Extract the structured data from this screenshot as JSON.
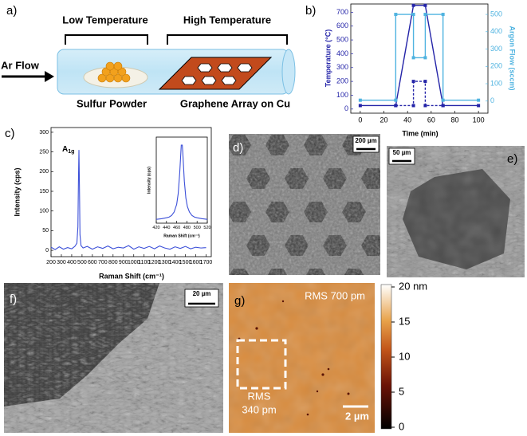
{
  "diagram": {
    "label": "a)",
    "low": "Low Temperature",
    "high": "High Temperature",
    "flow": "Ar Flow",
    "source": "Sulfur Powder",
    "substrate": "Graphene Array on Cu"
  },
  "chart_data": [
    {
      "type": "line",
      "label": "b)",
      "xlabel": "Time (min)",
      "ylabel": "Temperature (°C)",
      "y2label": "Argon Flow (sccm)",
      "xlim": [
        -8,
        108
      ],
      "ylim": [
        -30,
        760
      ],
      "y2lim": [
        -70,
        560
      ],
      "xticks": [
        0,
        20,
        40,
        60,
        80,
        100
      ],
      "yticks": [
        0,
        100,
        200,
        300,
        400,
        500,
        600,
        700
      ],
      "y2ticks": [
        0,
        100,
        200,
        300,
        400,
        500
      ],
      "markers": true,
      "axis_color": "#2424a8",
      "axis2_color": "#4fb3e0",
      "series": [
        {
          "color": "#2424a8",
          "x": [
            0,
            30,
            45,
            55,
            70,
            100
          ],
          "values": [
            25,
            25,
            750,
            750,
            25,
            25
          ]
        },
        {
          "color": "#2424a8",
          "dashed": true,
          "x": [
            30,
            45,
            45,
            55,
            55,
            70
          ],
          "values": [
            25,
            25,
            200,
            200,
            25,
            25
          ]
        },
        {
          "color": "#4fb3e0",
          "axis": "y2",
          "x": [
            0,
            30,
            30,
            45,
            45,
            55,
            55,
            70,
            70,
            100
          ],
          "values": [
            5,
            5,
            500,
            500,
            250,
            250,
            500,
            500,
            5,
            5
          ]
        }
      ]
    },
    {
      "type": "line",
      "label": "c)",
      "xlabel": "Raman Shift (cm⁻¹)",
      "ylabel": "Intensity (cps)",
      "annotation": {
        "text": "A",
        "sub": "1g"
      },
      "xlim": [
        200,
        1750
      ],
      "ylim": [
        -16,
        312
      ],
      "xticks": [
        200,
        300,
        400,
        500,
        600,
        700,
        800,
        900,
        1000,
        1100,
        1200,
        1300,
        1400,
        1500,
        1600,
        1700
      ],
      "yticks": [
        0,
        50,
        100,
        150,
        200,
        250,
        300
      ],
      "series": [
        {
          "color": "#3b4fd8",
          "x": [
            200,
            240,
            280,
            320,
            360,
            400,
            430,
            450,
            460,
            465,
            470,
            475,
            480,
            490,
            510,
            550,
            600,
            650,
            700,
            750,
            800,
            850,
            900,
            950,
            1000,
            1050,
            1100,
            1150,
            1200,
            1250,
            1300,
            1350,
            1400,
            1450,
            1500,
            1550,
            1600,
            1650,
            1700
          ],
          "values": [
            8,
            2,
            9,
            3,
            7,
            4,
            10,
            18,
            60,
            170,
            255,
            160,
            40,
            12,
            6,
            10,
            3,
            9,
            5,
            11,
            4,
            8,
            6,
            12,
            3,
            9,
            5,
            10,
            4,
            11,
            6,
            3,
            9,
            5,
            10,
            4,
            8,
            6,
            7
          ]
        }
      ]
    },
    {
      "type": "line",
      "xlabel": "Raman Shift (cm⁻¹)",
      "ylabel": "Intensity (cps)",
      "xlim": [
        420,
        520
      ],
      "ylim": [
        0,
        270
      ],
      "xticks": [
        420,
        440,
        460,
        480,
        500,
        520
      ],
      "series": [
        {
          "color": "#3b4fd8",
          "x": [
            420,
            430,
            440,
            445,
            450,
            455,
            460,
            463,
            466,
            469,
            471,
            472,
            475,
            478,
            481,
            485,
            490,
            495,
            500,
            510,
            520
          ],
          "values": [
            12,
            14,
            17,
            19,
            24,
            35,
            59,
            93,
            159,
            245,
            245,
            221,
            132,
            79,
            52,
            35,
            24,
            19,
            17,
            14,
            12
          ]
        }
      ]
    }
  ],
  "images": [
    {
      "label": "d)",
      "scale_bar": "200 µm"
    },
    {
      "label": "e)",
      "scale_bar": "50 µm"
    },
    {
      "label": "f)",
      "scale_bar": "20 µm"
    },
    {
      "label": "g)",
      "scale_bar": "2 µm",
      "rms_top": "RMS 700 pm",
      "rms_box": [
        "RMS",
        "340 pm"
      ]
    }
  ],
  "colorbar": {
    "lim": [
      0,
      20
    ],
    "ticks": [
      0,
      5,
      10,
      15,
      {
        "value": 20,
        "label": "20 nm"
      }
    ]
  }
}
